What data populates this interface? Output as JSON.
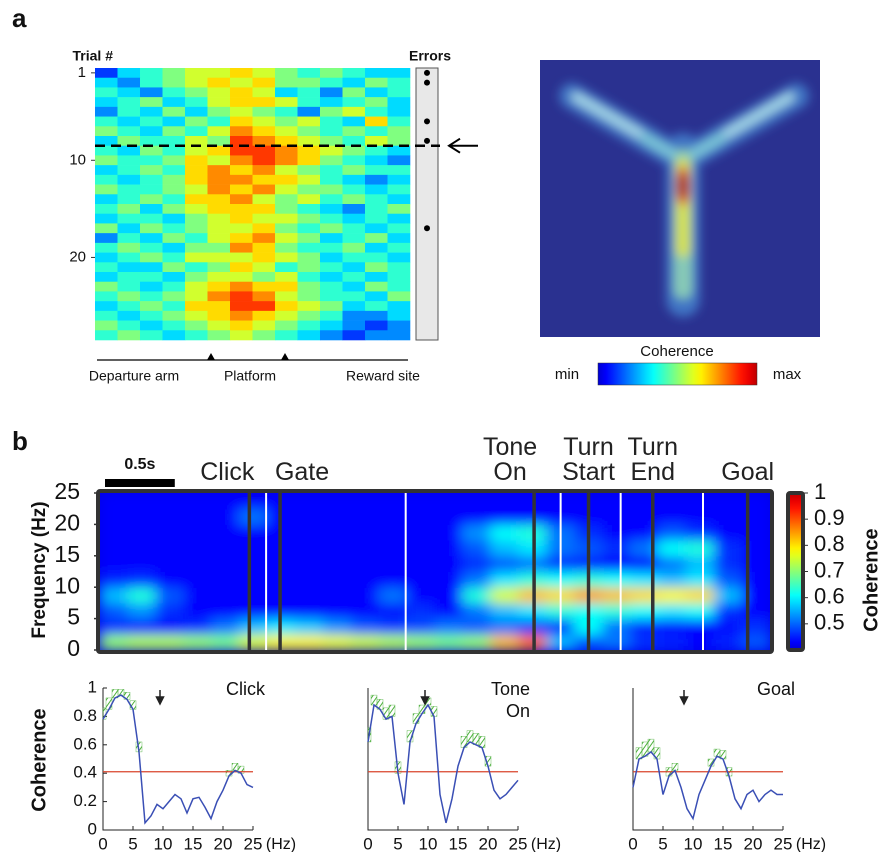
{
  "panel_labels": [
    "a",
    "b"
  ],
  "chart_data": [
    {
      "type": "heatmap",
      "ylabel": "Trial #",
      "ylim": [
        0.5,
        28.5
      ],
      "yticks": [
        1,
        10,
        20
      ],
      "clim": [
        0,
        1
      ],
      "errors_label": "Errors",
      "errors": [
        1,
        2,
        6,
        8,
        17
      ],
      "dashed_line": 8.5,
      "xlabels": [
        "Departure arm",
        "Platform",
        "Reward site"
      ],
      "values": [
        [
          0.1,
          0.3,
          0.4,
          0.5,
          0.6,
          0.6,
          0.7,
          0.6,
          0.5,
          0.4,
          0.5,
          0.4,
          0.3,
          0.3
        ],
        [
          0.3,
          0.2,
          0.4,
          0.5,
          0.6,
          0.7,
          0.6,
          0.7,
          0.5,
          0.5,
          0.4,
          0.3,
          0.5,
          0.4
        ],
        [
          0.4,
          0.3,
          0.2,
          0.4,
          0.5,
          0.6,
          0.7,
          0.6,
          0.3,
          0.4,
          0.2,
          0.5,
          0.3,
          0.4
        ],
        [
          0.3,
          0.4,
          0.5,
          0.3,
          0.4,
          0.6,
          0.7,
          0.7,
          0.6,
          0.4,
          0.3,
          0.4,
          0.5,
          0.3
        ],
        [
          0.2,
          0.4,
          0.3,
          0.5,
          0.3,
          0.5,
          0.6,
          0.5,
          0.4,
          0.2,
          0.5,
          0.6,
          0.4,
          0.3
        ],
        [
          0.4,
          0.3,
          0.4,
          0.3,
          0.5,
          0.4,
          0.7,
          0.6,
          0.5,
          0.6,
          0.4,
          0.3,
          0.7,
          0.4
        ],
        [
          0.5,
          0.4,
          0.3,
          0.5,
          0.4,
          0.6,
          0.8,
          0.7,
          0.6,
          0.5,
          0.4,
          0.5,
          0.4,
          0.5
        ],
        [
          0.3,
          0.5,
          0.4,
          0.4,
          0.6,
          0.5,
          0.9,
          0.8,
          0.7,
          0.6,
          0.5,
          0.4,
          0.6,
          0.5
        ],
        [
          0.4,
          0.3,
          0.5,
          0.4,
          0.6,
          0.7,
          0.9,
          0.9,
          0.8,
          0.7,
          0.6,
          0.5,
          0.4,
          0.3
        ],
        [
          0.5,
          0.4,
          0.4,
          0.5,
          0.7,
          0.6,
          0.8,
          0.9,
          0.8,
          0.7,
          0.5,
          0.4,
          0.3,
          0.2
        ],
        [
          0.3,
          0.4,
          0.5,
          0.4,
          0.7,
          0.8,
          0.7,
          0.8,
          0.6,
          0.5,
          0.4,
          0.5,
          0.4,
          0.4
        ],
        [
          0.4,
          0.3,
          0.4,
          0.5,
          0.7,
          0.8,
          0.8,
          0.7,
          0.7,
          0.6,
          0.4,
          0.3,
          0.2,
          0.3
        ],
        [
          0.5,
          0.4,
          0.4,
          0.5,
          0.6,
          0.8,
          0.7,
          0.8,
          0.6,
          0.5,
          0.5,
          0.4,
          0.3,
          0.4
        ],
        [
          0.3,
          0.4,
          0.5,
          0.4,
          0.7,
          0.7,
          0.8,
          0.6,
          0.5,
          0.6,
          0.4,
          0.5,
          0.4,
          0.3
        ],
        [
          0.4,
          0.5,
          0.3,
          0.5,
          0.6,
          0.7,
          0.7,
          0.7,
          0.5,
          0.4,
          0.3,
          0.2,
          0.4,
          0.5
        ],
        [
          0.3,
          0.4,
          0.4,
          0.3,
          0.5,
          0.6,
          0.7,
          0.6,
          0.6,
          0.5,
          0.4,
          0.3,
          0.4,
          0.3
        ],
        [
          0.5,
          0.3,
          0.5,
          0.4,
          0.5,
          0.6,
          0.6,
          0.7,
          0.5,
          0.4,
          0.5,
          0.4,
          0.3,
          0.4
        ],
        [
          0.2,
          0.4,
          0.3,
          0.5,
          0.4,
          0.6,
          0.7,
          0.8,
          0.6,
          0.5,
          0.3,
          0.4,
          0.5,
          0.3
        ],
        [
          0.4,
          0.5,
          0.4,
          0.3,
          0.5,
          0.5,
          0.8,
          0.7,
          0.5,
          0.4,
          0.4,
          0.5,
          0.3,
          0.4
        ],
        [
          0.3,
          0.4,
          0.5,
          0.4,
          0.6,
          0.6,
          0.6,
          0.7,
          0.6,
          0.5,
          0.3,
          0.4,
          0.4,
          0.3
        ],
        [
          0.4,
          0.3,
          0.3,
          0.5,
          0.4,
          0.5,
          0.7,
          0.6,
          0.4,
          0.5,
          0.4,
          0.3,
          0.5,
          0.4
        ],
        [
          0.3,
          0.4,
          0.4,
          0.3,
          0.5,
          0.6,
          0.6,
          0.5,
          0.6,
          0.4,
          0.3,
          0.4,
          0.3,
          0.4
        ],
        [
          0.5,
          0.4,
          0.3,
          0.4,
          0.6,
          0.7,
          0.8,
          0.7,
          0.7,
          0.5,
          0.4,
          0.3,
          0.5,
          0.4
        ],
        [
          0.4,
          0.5,
          0.4,
          0.5,
          0.6,
          0.8,
          0.9,
          0.8,
          0.6,
          0.5,
          0.4,
          0.4,
          0.3,
          0.5
        ],
        [
          0.3,
          0.4,
          0.5,
          0.4,
          0.7,
          0.7,
          0.9,
          0.9,
          0.7,
          0.6,
          0.5,
          0.3,
          0.4,
          0.3
        ],
        [
          0.4,
          0.3,
          0.4,
          0.5,
          0.6,
          0.7,
          0.8,
          0.7,
          0.6,
          0.5,
          0.4,
          0.2,
          0.2,
          0.3
        ],
        [
          0.5,
          0.4,
          0.3,
          0.4,
          0.5,
          0.6,
          0.7,
          0.6,
          0.5,
          0.4,
          0.3,
          0.2,
          0.1,
          0.2
        ],
        [
          0.4,
          0.5,
          0.4,
          0.3,
          0.4,
          0.5,
          0.6,
          0.5,
          0.4,
          0.3,
          0.2,
          0.1,
          0.2,
          0.2
        ]
      ]
    },
    {
      "type": "map",
      "colorbar_label": "Coherence",
      "colorbar_min": "min",
      "colorbar_max": "max"
    },
    {
      "type": "spectrogram",
      "ylabel": "Frequency (Hz)",
      "xlim": [
        0,
        4.8
      ],
      "ylim": [
        0,
        25
      ],
      "yticks": [
        0,
        5,
        10,
        15,
        20,
        25
      ],
      "clim": [
        0.4,
        1
      ],
      "cticks": [
        0.5,
        0.6,
        0.7,
        0.8,
        0.9,
        1
      ],
      "colorbar_label": "Coherence",
      "scale_bar": {
        "value": 0.5,
        "label": "0.5s"
      },
      "events": [
        {
          "label": "Click",
          "t": 1.07
        },
        {
          "label": "Gate",
          "t": 1.29
        },
        {
          "label": "Tone On",
          "t": 3.11
        },
        {
          "label": "Turn Start",
          "t": 3.5
        },
        {
          "label": "Turn End",
          "t": 3.96
        },
        {
          "label": "Goal",
          "t": 4.64
        }
      ],
      "white_lines": [
        1.19,
        2.19,
        3.3,
        3.73,
        4.32
      ],
      "values": [
        [
          0.7,
          0.72,
          0.72,
          0.7,
          0.68,
          0.75,
          0.78,
          0.78,
          0.76,
          0.74,
          0.72,
          0.7,
          0.68,
          0.7,
          0.82,
          0.88,
          0.55,
          0.48,
          0.5,
          0.45,
          0.44,
          0.42,
          0.44,
          0.48
        ],
        [
          0.45,
          0.44,
          0.43,
          0.45,
          0.5,
          0.55,
          0.58,
          0.56,
          0.52,
          0.48,
          0.46,
          0.47,
          0.5,
          0.48,
          0.5,
          0.46,
          0.45,
          0.6,
          0.5,
          0.44,
          0.43,
          0.42,
          0.43,
          0.45
        ],
        [
          0.48,
          0.52,
          0.45,
          0.42,
          0.42,
          0.42,
          0.42,
          0.42,
          0.42,
          0.42,
          0.43,
          0.45,
          0.42,
          0.5,
          0.55,
          0.58,
          0.62,
          0.6,
          0.62,
          0.6,
          0.58,
          0.6,
          0.45,
          0.42
        ],
        [
          0.55,
          0.62,
          0.48,
          0.42,
          0.42,
          0.42,
          0.42,
          0.42,
          0.42,
          0.42,
          0.5,
          0.42,
          0.42,
          0.62,
          0.75,
          0.82,
          0.8,
          0.84,
          0.82,
          0.8,
          0.78,
          0.8,
          0.55,
          0.42
        ],
        [
          0.44,
          0.45,
          0.42,
          0.42,
          0.42,
          0.42,
          0.42,
          0.42,
          0.42,
          0.42,
          0.42,
          0.42,
          0.42,
          0.5,
          0.58,
          0.62,
          0.6,
          0.62,
          0.6,
          0.58,
          0.55,
          0.58,
          0.48,
          0.42
        ],
        [
          0.42,
          0.42,
          0.42,
          0.42,
          0.42,
          0.42,
          0.42,
          0.42,
          0.42,
          0.42,
          0.42,
          0.42,
          0.42,
          0.45,
          0.48,
          0.5,
          0.45,
          0.44,
          0.42,
          0.42,
          0.5,
          0.55,
          0.45,
          0.42
        ],
        [
          0.42,
          0.42,
          0.42,
          0.42,
          0.42,
          0.42,
          0.42,
          0.42,
          0.42,
          0.42,
          0.42,
          0.42,
          0.42,
          0.48,
          0.55,
          0.58,
          0.5,
          0.48,
          0.45,
          0.5,
          0.6,
          0.62,
          0.45,
          0.42
        ],
        [
          0.42,
          0.42,
          0.42,
          0.42,
          0.42,
          0.42,
          0.42,
          0.42,
          0.42,
          0.42,
          0.42,
          0.42,
          0.42,
          0.52,
          0.6,
          0.62,
          0.5,
          0.45,
          0.42,
          0.42,
          0.48,
          0.45,
          0.42,
          0.42
        ],
        [
          0.42,
          0.42,
          0.42,
          0.42,
          0.42,
          0.5,
          0.42,
          0.42,
          0.42,
          0.42,
          0.42,
          0.42,
          0.42,
          0.42,
          0.42,
          0.42,
          0.42,
          0.42,
          0.42,
          0.42,
          0.42,
          0.42,
          0.42,
          0.42
        ],
        [
          0.42,
          0.42,
          0.42,
          0.42,
          0.42,
          0.42,
          0.42,
          0.42,
          0.42,
          0.42,
          0.42,
          0.42,
          0.42,
          0.42,
          0.42,
          0.42,
          0.42,
          0.42,
          0.42,
          0.42,
          0.42,
          0.42,
          0.42,
          0.42
        ]
      ]
    },
    {
      "type": "line",
      "title": "Click",
      "ylabel": "Coherence",
      "xunit": "(Hz)",
      "xlim": [
        0,
        25
      ],
      "ylim": [
        0,
        1
      ],
      "xticks": [
        0,
        5,
        10,
        15,
        20,
        25
      ],
      "yticks": [
        0,
        0.2,
        0.4,
        0.6,
        0.8,
        1
      ],
      "threshold": 0.41,
      "arrow_x": 9.5,
      "colors": {
        "line": "#3a4fb5",
        "threshold": "#d9452b",
        "band": "#4daf3c"
      },
      "x": [
        0,
        1,
        2,
        3,
        4,
        5,
        6,
        7,
        8,
        9,
        10,
        11,
        12,
        13,
        14,
        15,
        16,
        17,
        18,
        19,
        20,
        21,
        22,
        23,
        24,
        25
      ],
      "values": [
        0.78,
        0.85,
        0.93,
        0.95,
        0.92,
        0.85,
        0.55,
        0.05,
        0.1,
        0.18,
        0.15,
        0.2,
        0.25,
        0.22,
        0.12,
        0.22,
        0.23,
        0.16,
        0.08,
        0.2,
        0.28,
        0.38,
        0.42,
        0.4,
        0.32,
        0.3
      ],
      "upper": [
        0.86,
        0.93,
        0.99,
        0.99,
        0.97,
        0.91,
        0.62,
        null,
        null,
        null,
        null,
        null,
        null,
        null,
        null,
        null,
        null,
        null,
        null,
        null,
        null,
        0.42,
        0.47,
        0.45,
        null,
        null
      ]
    },
    {
      "type": "line",
      "title": "Tone On",
      "xunit": "(Hz)",
      "xlim": [
        0,
        25
      ],
      "ylim": [
        0,
        1
      ],
      "xticks": [
        0,
        5,
        10,
        15,
        20,
        25
      ],
      "threshold": 0.41,
      "arrow_x": 9.5,
      "colors": {
        "line": "#3a4fb5",
        "threshold": "#d9452b",
        "band": "#4daf3c"
      },
      "x": [
        0,
        1,
        2,
        3,
        4,
        5,
        6,
        7,
        8,
        9,
        10,
        11,
        12,
        13,
        14,
        15,
        16,
        17,
        18,
        19,
        20,
        21,
        22,
        23,
        24,
        25
      ],
      "values": [
        0.62,
        0.88,
        0.85,
        0.78,
        0.8,
        0.4,
        0.18,
        0.62,
        0.75,
        0.82,
        0.88,
        0.8,
        0.25,
        0.05,
        0.22,
        0.45,
        0.58,
        0.62,
        0.6,
        0.58,
        0.45,
        0.28,
        0.22,
        0.25,
        0.3,
        0.35
      ],
      "upper": [
        0.72,
        0.95,
        0.92,
        0.86,
        0.88,
        0.48,
        null,
        0.7,
        0.82,
        0.88,
        0.93,
        0.87,
        null,
        null,
        null,
        null,
        0.66,
        0.7,
        0.68,
        0.66,
        0.52,
        null,
        null,
        null,
        null,
        null
      ]
    },
    {
      "type": "line",
      "title": "Goal",
      "xunit": "(Hz)",
      "xlim": [
        0,
        25
      ],
      "ylim": [
        0,
        1
      ],
      "xticks": [
        0,
        5,
        10,
        15,
        20,
        25
      ],
      "threshold": 0.41,
      "arrow_x": 8.5,
      "colors": {
        "line": "#3a4fb5",
        "threshold": "#d9452b",
        "band": "#4daf3c"
      },
      "x": [
        0,
        1,
        2,
        3,
        4,
        5,
        6,
        7,
        8,
        9,
        10,
        11,
        12,
        13,
        14,
        15,
        16,
        17,
        18,
        19,
        20,
        21,
        22,
        23,
        24,
        25
      ],
      "values": [
        0.3,
        0.5,
        0.52,
        0.55,
        0.5,
        0.25,
        0.38,
        0.42,
        0.3,
        0.15,
        0.08,
        0.25,
        0.35,
        0.45,
        0.52,
        0.5,
        0.38,
        0.22,
        0.15,
        0.25,
        0.28,
        0.2,
        0.25,
        0.28,
        0.25,
        0.25
      ],
      "upper": [
        null,
        0.58,
        0.62,
        0.64,
        0.58,
        null,
        0.44,
        0.47,
        null,
        null,
        null,
        null,
        null,
        0.5,
        0.57,
        0.56,
        0.44,
        null,
        null,
        null,
        null,
        null,
        null,
        null,
        null,
        null
      ]
    }
  ]
}
